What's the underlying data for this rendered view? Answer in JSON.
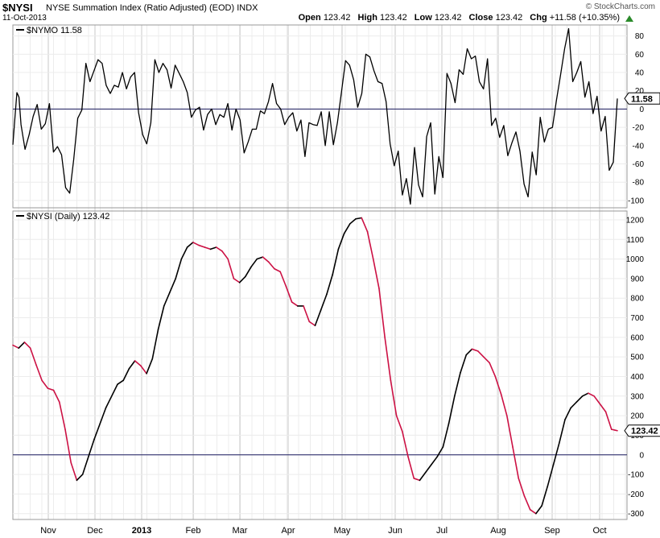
{
  "header": {
    "symbol": "$NYSI",
    "description": "NYSE Summation Index (Ratio Adjusted) (EOD)",
    "exchange": "INDX",
    "date": "11-Oct-2013",
    "brand": "© StockCharts.com",
    "open_label": "Open",
    "open": "123.42",
    "high_label": "High",
    "high": "123.42",
    "low_label": "Low",
    "low": "123.42",
    "close_label": "Close",
    "close": "123.42",
    "chg_label": "Chg",
    "chg": "+11.58 (+10.35%)",
    "up_color": "#2a8a2a"
  },
  "x_axis": {
    "months": [
      "Nov",
      "Dec",
      "2013",
      "Feb",
      "Mar",
      "Apr",
      "May",
      "Jun",
      "Jul",
      "Aug",
      "Sep",
      "Oct"
    ]
  },
  "chart_data": [
    {
      "type": "line",
      "legend": "$NYMO 11.58",
      "series_name": "$NYMO",
      "last_value": "11.58",
      "ylim": [
        -108,
        92
      ],
      "ticks": [
        -100,
        -80,
        -60,
        -40,
        -20,
        0,
        20,
        40,
        60,
        80
      ],
      "zero_line": 0,
      "line_color": "#000000",
      "points": [
        [
          0,
          -39
        ],
        [
          0.5,
          -10
        ],
        [
          1,
          18
        ],
        [
          1.5,
          13
        ],
        [
          2,
          -17
        ],
        [
          3,
          -44
        ],
        [
          4,
          -28
        ],
        [
          5,
          -8
        ],
        [
          6,
          5
        ],
        [
          7,
          -22
        ],
        [
          8,
          -16
        ],
        [
          9,
          6
        ],
        [
          10,
          -47
        ],
        [
          11,
          -41
        ],
        [
          12,
          -50
        ],
        [
          13,
          -86
        ],
        [
          14,
          -92
        ],
        [
          15,
          -55
        ],
        [
          16,
          -10
        ],
        [
          17,
          -1
        ],
        [
          18,
          50
        ],
        [
          19,
          30
        ],
        [
          20,
          42
        ],
        [
          21,
          54
        ],
        [
          22,
          50
        ],
        [
          23,
          26
        ],
        [
          24,
          17
        ],
        [
          25,
          26
        ],
        [
          26,
          24
        ],
        [
          27,
          40
        ],
        [
          28,
          22
        ],
        [
          29,
          35
        ],
        [
          30,
          40
        ],
        [
          31,
          -4
        ],
        [
          32,
          -28
        ],
        [
          33,
          -38
        ],
        [
          34,
          -15
        ],
        [
          35,
          54
        ],
        [
          36,
          40
        ],
        [
          37,
          50
        ],
        [
          38,
          43
        ],
        [
          39,
          23
        ],
        [
          40,
          48
        ],
        [
          41,
          39
        ],
        [
          42,
          30
        ],
        [
          43,
          18
        ],
        [
          44,
          -9
        ],
        [
          45,
          -1
        ],
        [
          46,
          2
        ],
        [
          47,
          -23
        ],
        [
          48,
          -6
        ],
        [
          49,
          0
        ],
        [
          50,
          -17
        ],
        [
          51,
          -6
        ],
        [
          52,
          -9
        ],
        [
          53,
          6
        ],
        [
          54,
          -23
        ],
        [
          55,
          0
        ],
        [
          56,
          -12
        ],
        [
          57,
          -48
        ],
        [
          58,
          -36
        ],
        [
          59,
          -22
        ],
        [
          60,
          -22
        ],
        [
          61,
          -2
        ],
        [
          62,
          -5
        ],
        [
          63,
          8
        ],
        [
          64,
          28
        ],
        [
          65,
          6
        ],
        [
          66,
          0
        ],
        [
          67,
          -17
        ],
        [
          68,
          -9
        ],
        [
          69,
          -4
        ],
        [
          70,
          -24
        ],
        [
          71,
          -12
        ],
        [
          72,
          -52
        ],
        [
          73,
          -15
        ],
        [
          74,
          -17
        ],
        [
          75,
          -18
        ],
        [
          76,
          -3
        ],
        [
          77,
          -40
        ],
        [
          78,
          -3
        ],
        [
          79,
          -39
        ],
        [
          80,
          -15
        ],
        [
          81,
          19
        ],
        [
          82,
          53
        ],
        [
          83,
          48
        ],
        [
          84,
          32
        ],
        [
          85,
          2
        ],
        [
          86,
          17
        ],
        [
          87,
          60
        ],
        [
          88,
          57
        ],
        [
          89,
          42
        ],
        [
          90,
          30
        ],
        [
          91,
          28
        ],
        [
          92,
          8
        ],
        [
          93,
          -38
        ],
        [
          94,
          -62
        ],
        [
          95,
          -46
        ],
        [
          96,
          -94
        ],
        [
          97,
          -76
        ],
        [
          98,
          -104
        ],
        [
          99,
          -42
        ],
        [
          100,
          -83
        ],
        [
          101,
          -96
        ],
        [
          102,
          -30
        ],
        [
          103,
          -15
        ],
        [
          104,
          -93
        ],
        [
          105,
          -52
        ],
        [
          106,
          -75
        ],
        [
          107,
          39
        ],
        [
          108,
          28
        ],
        [
          109,
          7
        ],
        [
          110,
          43
        ],
        [
          111,
          38
        ],
        [
          112,
          66
        ],
        [
          113,
          55
        ],
        [
          114,
          58
        ],
        [
          115,
          30
        ],
        [
          116,
          22
        ],
        [
          117,
          55
        ],
        [
          118,
          -18
        ],
        [
          119,
          -10
        ],
        [
          120,
          -31
        ],
        [
          121,
          -18
        ],
        [
          122,
          -51
        ],
        [
          123,
          -37
        ],
        [
          124,
          -25
        ],
        [
          125,
          -46
        ],
        [
          126,
          -82
        ],
        [
          127,
          -96
        ],
        [
          128,
          -47
        ],
        [
          129,
          -72
        ],
        [
          130,
          -9
        ],
        [
          131,
          -36
        ],
        [
          132,
          -22
        ],
        [
          133,
          -20
        ],
        [
          134,
          10
        ],
        [
          135,
          37
        ],
        [
          136,
          66
        ],
        [
          137,
          88
        ],
        [
          138,
          30
        ],
        [
          139,
          40
        ],
        [
          140,
          52
        ],
        [
          141,
          13
        ],
        [
          142,
          30
        ],
        [
          143,
          -5
        ],
        [
          144,
          14
        ],
        [
          145,
          -24
        ],
        [
          146,
          -8
        ],
        [
          147,
          -67
        ],
        [
          148,
          -58
        ],
        [
          149,
          11.58
        ]
      ]
    },
    {
      "type": "line",
      "legend": "$NYSI (Daily) 123.42",
      "series_name": "$NYSI (Daily)",
      "last_value": "123.42",
      "ylim": [
        -330,
        1245
      ],
      "ticks": [
        -300,
        -200,
        -100,
        0,
        100,
        200,
        300,
        400,
        500,
        600,
        700,
        800,
        900,
        1000,
        1100,
        1200
      ],
      "zero_line": 0,
      "up_color": "#000000",
      "down_color": "#cc1144",
      "points": [
        [
          0,
          560
        ],
        [
          1,
          545
        ],
        [
          2,
          575
        ],
        [
          3,
          545
        ],
        [
          4,
          460
        ],
        [
          5,
          380
        ],
        [
          6,
          340
        ],
        [
          7,
          330
        ],
        [
          8,
          270
        ],
        [
          9,
          130
        ],
        [
          10,
          -40
        ],
        [
          11,
          -130
        ],
        [
          12,
          -100
        ],
        [
          13,
          -10
        ],
        [
          14,
          80
        ],
        [
          15,
          160
        ],
        [
          16,
          240
        ],
        [
          17,
          300
        ],
        [
          18,
          360
        ],
        [
          19,
          380
        ],
        [
          20,
          440
        ],
        [
          21,
          480
        ],
        [
          22,
          455
        ],
        [
          23,
          415
        ],
        [
          24,
          490
        ],
        [
          25,
          640
        ],
        [
          26,
          760
        ],
        [
          27,
          830
        ],
        [
          28,
          900
        ],
        [
          29,
          1000
        ],
        [
          30,
          1060
        ],
        [
          31,
          1085
        ],
        [
          32,
          1070
        ],
        [
          33,
          1060
        ],
        [
          34,
          1050
        ],
        [
          35,
          1060
        ],
        [
          36,
          1040
        ],
        [
          37,
          1000
        ],
        [
          38,
          900
        ],
        [
          39,
          880
        ],
        [
          40,
          910
        ],
        [
          41,
          960
        ],
        [
          42,
          1000
        ],
        [
          43,
          1010
        ],
        [
          44,
          985
        ],
        [
          45,
          950
        ],
        [
          46,
          935
        ],
        [
          47,
          860
        ],
        [
          48,
          780
        ],
        [
          49,
          760
        ],
        [
          50,
          760
        ],
        [
          51,
          680
        ],
        [
          52,
          660
        ],
        [
          53,
          740
        ],
        [
          54,
          820
        ],
        [
          55,
          920
        ],
        [
          56,
          1050
        ],
        [
          57,
          1130
        ],
        [
          58,
          1180
        ],
        [
          59,
          1205
        ],
        [
          60,
          1210
        ],
        [
          61,
          1140
        ],
        [
          62,
          1000
        ],
        [
          63,
          850
        ],
        [
          64,
          600
        ],
        [
          65,
          380
        ],
        [
          66,
          200
        ],
        [
          67,
          120
        ],
        [
          68,
          -10
        ],
        [
          69,
          -120
        ],
        [
          70,
          -130
        ],
        [
          71,
          -90
        ],
        [
          72,
          -50
        ],
        [
          73,
          -10
        ],
        [
          74,
          40
        ],
        [
          75,
          160
        ],
        [
          76,
          300
        ],
        [
          77,
          420
        ],
        [
          78,
          510
        ],
        [
          79,
          540
        ],
        [
          80,
          530
        ],
        [
          81,
          500
        ],
        [
          82,
          470
        ],
        [
          83,
          400
        ],
        [
          84,
          310
        ],
        [
          85,
          200
        ],
        [
          86,
          40
        ],
        [
          87,
          -120
        ],
        [
          88,
          -210
        ],
        [
          89,
          -280
        ],
        [
          90,
          -300
        ],
        [
          91,
          -260
        ],
        [
          92,
          -160
        ],
        [
          93,
          -50
        ],
        [
          94,
          60
        ],
        [
          95,
          180
        ],
        [
          96,
          240
        ],
        [
          97,
          270
        ],
        [
          98,
          300
        ],
        [
          99,
          315
        ],
        [
          100,
          300
        ],
        [
          101,
          260
        ],
        [
          102,
          220
        ],
        [
          103,
          130
        ],
        [
          104,
          123.42
        ]
      ]
    }
  ]
}
